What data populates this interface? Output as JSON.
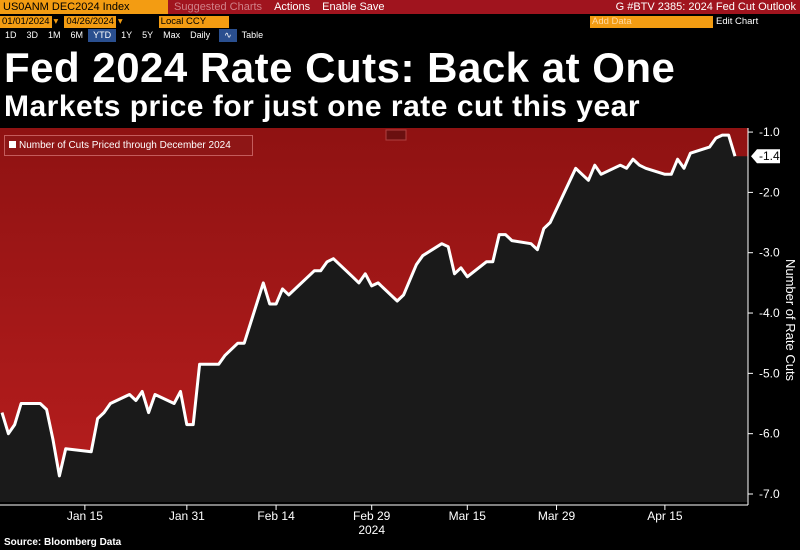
{
  "toolbar": {
    "ticker": "US0ANM DEC2024 Index",
    "suggested": "Suggested Charts",
    "actions": "Actions",
    "enable_save": "Enable Save",
    "chart_id": "G #BTV 2385: 2024 Fed Cut Outlook",
    "start_date": "01/01/2024",
    "end_date": "04/26/2024",
    "currency": "Local CCY",
    "add_data": "Add Data",
    "edit_chart": "Edit Chart",
    "ranges": [
      "1D",
      "3D",
      "1M",
      "6M",
      "YTD",
      "1Y",
      "5Y",
      "Max"
    ],
    "selected_range": "YTD",
    "frequency": "Daily",
    "table": "Table"
  },
  "colors": {
    "fill_top": "#8f1212",
    "fill_bottom": "#b51d1d",
    "plot_bg": "#1a1a1a",
    "line": "#ffffff",
    "topbar": "#a0141e",
    "field": "#f39c12"
  },
  "title": "Fed 2024 Rate Cuts: Back at One",
  "subtitle": "Markets price for just one rate cut this year",
  "legend_label": "Number of Cuts Priced through December 2024",
  "source": "Source: Bloomberg Data",
  "chart_data": {
    "type": "area",
    "title": "Fed 2024 Rate Cuts: Back at One",
    "subtitle": "Markets price for just one rate cut this year",
    "xlabel": "2024",
    "ylabel": "Number of Rate Cuts",
    "ylim": [
      -7.0,
      -0.8
    ],
    "y_ticks": [
      -1.0,
      -2.0,
      -3.0,
      -4.0,
      -5.0,
      -6.0,
      -7.0
    ],
    "y_tick_labels": [
      "-1.0",
      "-2.0",
      "-3.0",
      "-4.0",
      "-5.0",
      "-6.0",
      "-7.0"
    ],
    "x_ticks": [
      "Jan 15",
      "Jan 31",
      "Feb 14",
      "Feb 29",
      "Mar 15",
      "Mar 29",
      "Apr 15"
    ],
    "x_tick_dates": [
      "2024-01-15",
      "2024-01-31",
      "2024-02-14",
      "2024-02-29",
      "2024-03-15",
      "2024-03-29",
      "2024-04-15"
    ],
    "xlim": [
      "2024-01-02",
      "2024-04-26"
    ],
    "last_value_label": "-1.4",
    "grid": false,
    "series": [
      {
        "name": "Number of Cuts Priced through December 2024",
        "x": [
          "2024-01-02",
          "2024-01-03",
          "2024-01-04",
          "2024-01-05",
          "2024-01-08",
          "2024-01-09",
          "2024-01-10",
          "2024-01-11",
          "2024-01-12",
          "2024-01-16",
          "2024-01-17",
          "2024-01-18",
          "2024-01-19",
          "2024-01-22",
          "2024-01-23",
          "2024-01-24",
          "2024-01-25",
          "2024-01-26",
          "2024-01-29",
          "2024-01-30",
          "2024-01-31",
          "2024-02-01",
          "2024-02-02",
          "2024-02-05",
          "2024-02-06",
          "2024-02-07",
          "2024-02-08",
          "2024-02-09",
          "2024-02-12",
          "2024-02-13",
          "2024-02-14",
          "2024-02-15",
          "2024-02-16",
          "2024-02-20",
          "2024-02-21",
          "2024-02-22",
          "2024-02-23",
          "2024-02-26",
          "2024-02-27",
          "2024-02-28",
          "2024-02-29",
          "2024-03-01",
          "2024-03-04",
          "2024-03-05",
          "2024-03-06",
          "2024-03-07",
          "2024-03-08",
          "2024-03-11",
          "2024-03-12",
          "2024-03-13",
          "2024-03-14",
          "2024-03-15",
          "2024-03-18",
          "2024-03-19",
          "2024-03-20",
          "2024-03-21",
          "2024-03-22",
          "2024-03-25",
          "2024-03-26",
          "2024-03-27",
          "2024-03-28",
          "2024-04-01",
          "2024-04-02",
          "2024-04-03",
          "2024-04-04",
          "2024-04-05",
          "2024-04-08",
          "2024-04-09",
          "2024-04-10",
          "2024-04-11",
          "2024-04-12",
          "2024-04-15",
          "2024-04-16",
          "2024-04-17",
          "2024-04-18",
          "2024-04-19",
          "2024-04-22",
          "2024-04-23",
          "2024-04-24",
          "2024-04-25",
          "2024-04-26"
        ],
        "values": [
          -5.65,
          -6.0,
          -5.85,
          -5.5,
          -5.5,
          -5.6,
          -6.1,
          -6.7,
          -6.25,
          -6.3,
          -5.75,
          -5.65,
          -5.5,
          -5.35,
          -5.45,
          -5.3,
          -5.65,
          -5.35,
          -5.5,
          -5.3,
          -5.85,
          -5.85,
          -4.85,
          -4.85,
          -4.7,
          -4.6,
          -4.5,
          -4.5,
          -3.5,
          -3.85,
          -3.85,
          -3.6,
          -3.7,
          -3.3,
          -3.3,
          -3.15,
          -3.1,
          -3.4,
          -3.5,
          -3.35,
          -3.55,
          -3.5,
          -3.8,
          -3.7,
          -3.45,
          -3.2,
          -3.05,
          -2.85,
          -2.9,
          -3.35,
          -3.25,
          -3.4,
          -3.15,
          -3.15,
          -2.7,
          -2.7,
          -2.8,
          -2.85,
          -2.95,
          -2.6,
          -2.5,
          -1.6,
          -1.7,
          -1.8,
          -1.55,
          -1.7,
          -1.55,
          -1.6,
          -1.45,
          -1.55,
          -1.6,
          -1.7,
          -1.7,
          -1.45,
          -1.6,
          -1.35,
          -1.25,
          -1.1,
          -1.05,
          -1.05,
          -1.4
        ]
      }
    ]
  }
}
